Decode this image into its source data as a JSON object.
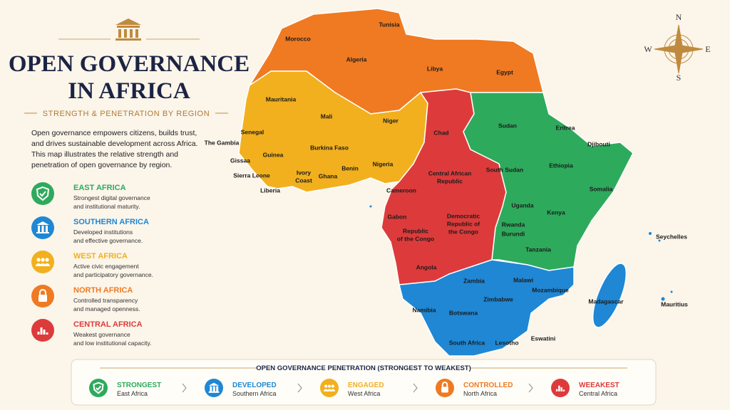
{
  "header": {
    "title_lines": [
      "OPEN GOVERNANCE",
      "IN AFRICA"
    ],
    "subtitle": "STRENGTH & PENETRATION BY REGION",
    "description": "Open governance empowers citizens, builds trust, and drives sustainable development across Africa. This map illustrates the relative strength and penetration of open governance by region."
  },
  "legend": [
    {
      "name": "EAST AFRICA",
      "desc": [
        "Strongest digital governance",
        "and institutional maturity."
      ],
      "color": "#2eaa5c"
    },
    {
      "name": "SOUTHERN AFRICA",
      "desc": [
        "Developed institutions",
        "and effective governance."
      ],
      "color": "#1f87d4"
    },
    {
      "name": "WEST AFRICA",
      "desc": [
        "Active civic engagement",
        "and participatory governance."
      ],
      "color": "#f2b01e"
    },
    {
      "name": "NORTH AFRICA",
      "desc": [
        "Controlled transparency",
        "and managed openness."
      ],
      "color": "#ef7a22"
    },
    {
      "name": "CENTRAL AFRICA",
      "desc": [
        "Weakest governance",
        "and low institutional capacity."
      ],
      "color": "#dd3b3b"
    }
  ],
  "compass": {
    "n": "N",
    "e": "E",
    "s": "S",
    "w": "W"
  },
  "countries": [
    [
      "Tunisia"
    ],
    [
      "Morocco"
    ],
    [
      "Algeria"
    ],
    [
      "Libya"
    ],
    [
      "Egypt"
    ],
    [
      "Mauritania"
    ],
    [
      "Mali"
    ],
    [
      "Niger"
    ],
    [
      "Chad"
    ],
    [
      "Sudan"
    ],
    [
      "Eritrea"
    ],
    [
      "Djibouti"
    ],
    [
      "Senegal"
    ],
    [
      "The Gambia"
    ],
    [
      "Burkina Faso"
    ],
    [
      "Guinea"
    ],
    [
      "Gissaa"
    ],
    [
      "Nigeria"
    ],
    [
      "Benin"
    ],
    [
      "Ivory",
      "Coast"
    ],
    [
      "Ghana"
    ],
    [
      "Sierra Leone"
    ],
    [
      "Liberia"
    ],
    [
      "Central African",
      "Republic"
    ],
    [
      "South Sudan"
    ],
    [
      "Ethiopia"
    ],
    [
      "Somalia"
    ],
    [
      "Cameroon"
    ],
    [
      "Uganda"
    ],
    [
      "Kenya"
    ],
    [
      "Gabon"
    ],
    [
      "Democratic",
      "Republic of",
      "the Congo"
    ],
    [
      "Republic",
      "of the Congo"
    ],
    [
      "Rwanda"
    ],
    [
      "Burundi"
    ],
    [
      "Tanzania"
    ],
    [
      "Seychelles"
    ],
    [
      "Angola"
    ],
    [
      "Zambia"
    ],
    [
      "Malawi"
    ],
    [
      "Mozambique"
    ],
    [
      "Zimbabwe"
    ],
    [
      "Namibia"
    ],
    [
      "Botswana"
    ],
    [
      "Madagascar"
    ],
    [
      "Mauritius"
    ],
    [
      "Eswatini"
    ],
    [
      "South Africa"
    ],
    [
      "Lesotho"
    ]
  ],
  "bar": {
    "title": "OPEN GOVERNANCE PENETRATION (STRONGEST TO WEAKEST)",
    "items": [
      {
        "level": "STRONGEST",
        "region": "East Africa"
      },
      {
        "level": "DEVELOPED",
        "region": "Southern Africa"
      },
      {
        "level": "ENGAGED",
        "region": "West Africa"
      },
      {
        "level": "CONTROLLED",
        "region": "North Africa"
      },
      {
        "level": "WEEAKEST",
        "region": "Central Africa"
      }
    ]
  }
}
